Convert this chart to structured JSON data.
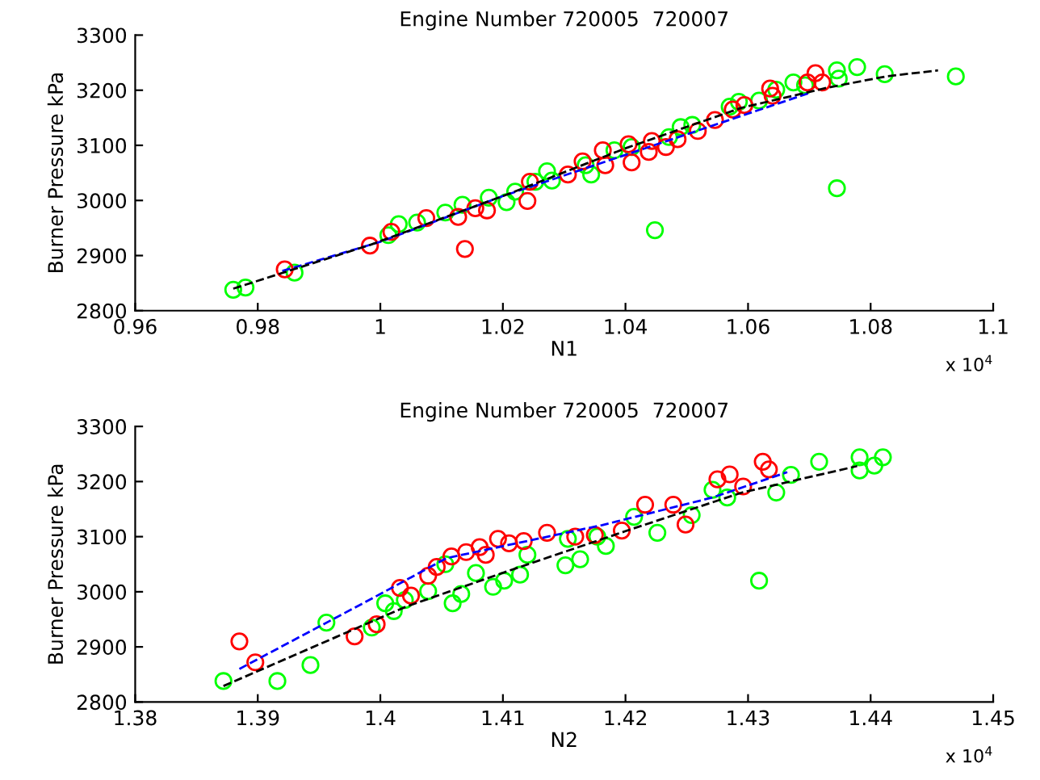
{
  "chart_data": [
    {
      "type": "scatter",
      "title": "Engine Number 720005  720007",
      "xlabel": "N1",
      "ylabel": "Burner Pressure kPa",
      "xlim": [
        0.96,
        1.1
      ],
      "xticks": [
        0.96,
        0.98,
        1,
        1.02,
        1.04,
        1.06,
        1.08,
        1.1
      ],
      "ylim": [
        2800,
        3300
      ],
      "yticks": [
        2800,
        2900,
        3000,
        3100,
        3200,
        3300
      ],
      "grid": false,
      "annotations": [
        "x 10$^{4}$"
      ],
      "series": [
        {
          "marker": "circle",
          "color": "#00ff00",
          "x": [
            0.976,
            0.978,
            0.986,
            1.0013,
            1.003,
            1.006,
            1.0106,
            1.0134,
            1.0177,
            1.0206,
            1.022,
            1.0253,
            1.0272,
            1.028,
            1.0344,
            1.0335,
            1.0382,
            1.041,
            1.0448,
            1.0471,
            1.049,
            1.0509,
            1.057,
            1.0585,
            1.0618,
            1.0646,
            1.0674,
            1.0693,
            1.0745,
            1.0748,
            1.0745,
            1.0778,
            1.0823,
            1.0939
          ],
          "values": [
            2838,
            2842,
            2869,
            2937,
            2957,
            2960,
            2978,
            2992,
            3005,
            2997,
            3016,
            3034,
            3053,
            3036,
            3047,
            3064,
            3091,
            3097,
            2946,
            3115,
            3133,
            3137,
            3170,
            3179,
            3181,
            3201,
            3214,
            3209,
            3236,
            3221,
            3022,
            3242,
            3229,
            3225
          ]
        },
        {
          "marker": "circle",
          "color": "#ff0000",
          "x": [
            0.9844,
            0.9983,
            1.0018,
            1.0075,
            1.0127,
            1.0138,
            1.0155,
            1.0174,
            1.024,
            1.0244,
            1.0306,
            1.033,
            1.0363,
            1.0367,
            1.0405,
            1.041,
            1.0438,
            1.0443,
            1.0466,
            1.0485,
            1.0518,
            1.0546,
            1.0575,
            1.0594,
            1.0636,
            1.064,
            1.0697,
            1.071,
            1.0721
          ],
          "values": [
            2875,
            2918,
            2943,
            2968,
            2970,
            2912,
            2986,
            2982,
            2999,
            3034,
            3047,
            3071,
            3091,
            3064,
            3102,
            3069,
            3088,
            3108,
            3097,
            3111,
            3126,
            3146,
            3165,
            3173,
            3203,
            3190,
            3214,
            3231,
            3214
          ]
        },
        {
          "type": "line",
          "marker": "none",
          "line_style": "dashed",
          "color": "#0000ff",
          "x": [
            0.984,
            1.0,
            1.02,
            1.05,
            1.07
          ],
          "values": [
            2872,
            2925,
            3008,
            3120,
            3195
          ]
        },
        {
          "type": "line",
          "marker": "none",
          "line_style": "dashed",
          "color": "#000000",
          "x": [
            0.976,
            0.9985,
            1.0212,
            1.0401,
            1.0589,
            1.0731,
            1.0825,
            1.091
          ],
          "values": [
            2840,
            2920,
            3013,
            3095,
            3168,
            3205,
            3225,
            3236
          ]
        }
      ]
    },
    {
      "type": "scatter",
      "title": "Engine Number 720005  720007",
      "xlabel": "N2",
      "ylabel": "Burner Pressure kPa",
      "xlim": [
        1.38,
        1.45
      ],
      "xticks": [
        1.38,
        1.39,
        1.4,
        1.41,
        1.42,
        1.43,
        1.44,
        1.45
      ],
      "ylim": [
        2800,
        3300
      ],
      "yticks": [
        2800,
        2900,
        3000,
        3100,
        3200,
        3300
      ],
      "grid": false,
      "annotations": [
        "x 10$^{4}$"
      ],
      "series": [
        {
          "marker": "circle",
          "color": "#00ff00",
          "x": [
            1.3872,
            1.3916,
            1.3943,
            1.3956,
            1.3993,
            1.4004,
            1.4011,
            1.402,
            1.4039,
            1.4053,
            1.4059,
            1.4066,
            1.4078,
            1.4092,
            1.4101,
            1.4114,
            1.412,
            1.4151,
            1.4163,
            1.4153,
            1.4177,
            1.4184,
            1.4207,
            1.4226,
            1.4254,
            1.4271,
            1.4283,
            1.4309,
            1.4323,
            1.4335,
            1.4358,
            1.4391,
            1.4391,
            1.4403,
            1.441
          ],
          "values": [
            2838,
            2838,
            2867,
            2944,
            2935,
            2979,
            2965,
            2985,
            3001,
            3050,
            2979,
            2996,
            3034,
            3009,
            3020,
            3031,
            3067,
            3048,
            3059,
            3096,
            3100,
            3083,
            3136,
            3107,
            3139,
            3185,
            3171,
            3020,
            3180,
            3212,
            3236,
            3244,
            3220,
            3229,
            3244
          ]
        },
        {
          "marker": "circle",
          "color": "#ff0000",
          "x": [
            1.3885,
            1.3898,
            1.3979,
            1.3997,
            1.4016,
            1.4025,
            1.4039,
            1.4046,
            1.4058,
            1.407,
            1.4081,
            1.4086,
            1.4096,
            1.4105,
            1.4117,
            1.4136,
            1.4159,
            1.4175,
            1.4197,
            1.4216,
            1.4239,
            1.4249,
            1.4275,
            1.4285,
            1.4296,
            1.4312,
            1.4317
          ],
          "values": [
            2910,
            2872,
            2919,
            2941,
            3007,
            2993,
            3029,
            3045,
            3064,
            3072,
            3081,
            3067,
            3096,
            3088,
            3092,
            3107,
            3100,
            3103,
            3111,
            3158,
            3158,
            3122,
            3204,
            3213,
            3191,
            3236,
            3222
          ]
        },
        {
          "type": "line",
          "marker": "none",
          "line_style": "dashed",
          "color": "#0000ff",
          "x": [
            1.3885,
            1.399,
            1.4054,
            1.4181,
            1.4271,
            1.4332
          ],
          "values": [
            2860,
            2984,
            3061,
            3121,
            3171,
            3217
          ]
        },
        {
          "type": "line",
          "marker": "none",
          "line_style": "dashed",
          "color": "#000000",
          "x": [
            1.3872,
            1.3964,
            1.4021,
            1.4106,
            1.42,
            1.4295,
            1.4389
          ],
          "values": [
            2829,
            2918,
            2973,
            3039,
            3110,
            3180,
            3228
          ]
        }
      ]
    }
  ]
}
